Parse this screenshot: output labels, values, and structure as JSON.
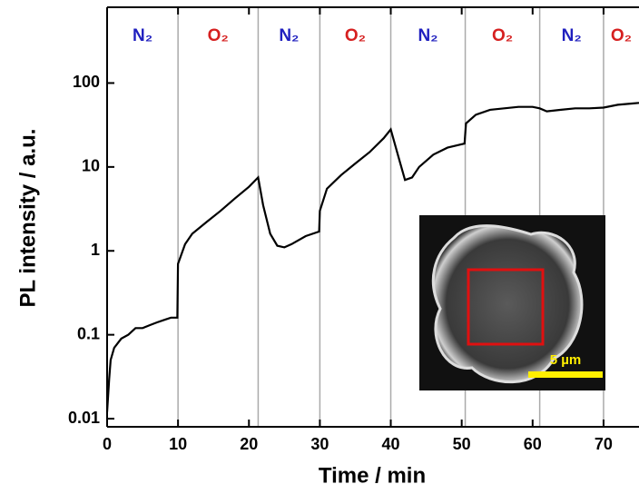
{
  "chart_data": {
    "type": "line",
    "log_y": true,
    "xlabel": "Time / min",
    "ylabel": "PL intensity / a.u.",
    "x": [
      0,
      0.3,
      0.5,
      1,
      2,
      3,
      4,
      5,
      6,
      7,
      8,
      9,
      9.9,
      10,
      11,
      12,
      14,
      16,
      18,
      20,
      21.3,
      22,
      23,
      24,
      25,
      26,
      28,
      29.9,
      30,
      31,
      33,
      35,
      37,
      39,
      40,
      41,
      42,
      43,
      44,
      46,
      48,
      50.4,
      50.6,
      52,
      54,
      56,
      58,
      60,
      61,
      62,
      64,
      66,
      68,
      70,
      72,
      74,
      75
    ],
    "values": [
      0.012,
      0.03,
      0.05,
      0.07,
      0.09,
      0.1,
      0.12,
      0.12,
      0.13,
      0.14,
      0.15,
      0.16,
      0.16,
      0.7,
      1.2,
      1.6,
      2.2,
      3,
      4.2,
      5.8,
      7.5,
      3.5,
      1.6,
      1.15,
      1.1,
      1.2,
      1.5,
      1.7,
      3,
      5.5,
      8,
      11,
      15,
      22,
      28,
      14,
      7,
      7.5,
      10,
      14,
      17,
      19,
      33,
      42,
      48,
      50,
      52,
      52,
      50,
      46,
      48,
      50,
      50,
      51,
      55,
      57,
      58
    ],
    "color": "#000000",
    "xlim": [
      0,
      75
    ],
    "xticks": [
      0,
      10,
      20,
      30,
      40,
      50,
      60,
      70
    ],
    "ylim": [
      0.008,
      800
    ],
    "yticks": [
      0.01,
      0.1,
      1,
      10,
      100
    ],
    "phase_boundaries": [
      10,
      21.3,
      30,
      40,
      50.5,
      61,
      70
    ],
    "phases": [
      "N₂",
      "O₂",
      "N₂",
      "O₂",
      "N₂",
      "O₂",
      "N₂",
      "O₂"
    ],
    "phase_colors": {
      "N₂": "#1f1fbf",
      "O₂": "#d62020"
    },
    "inset_scale_label": "5 µm"
  }
}
